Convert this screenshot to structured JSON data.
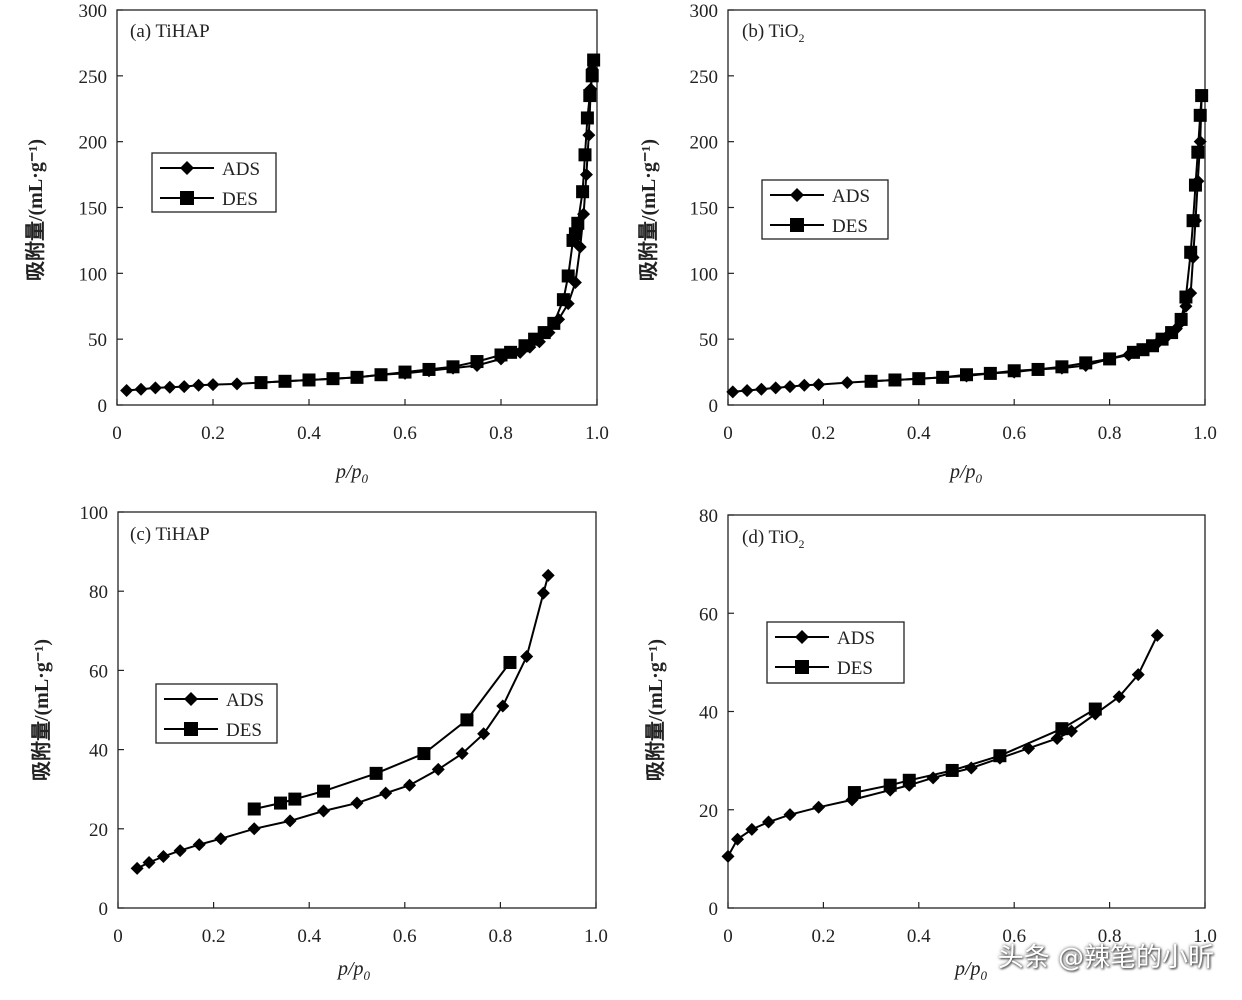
{
  "chart_data": [
    {
      "type": "line",
      "panel_label": "(a) TiHAP",
      "xlabel": "p/p0",
      "ylabel": "吸附量/(mL·g⁻¹)",
      "xlim": [
        0,
        1.0
      ],
      "ylim": [
        0,
        300
      ],
      "xticks": [
        "0",
        "0.2",
        "0.4",
        "0.6",
        "0.8",
        "1.0"
      ],
      "yticks": [
        "0",
        "50",
        "100",
        "150",
        "200",
        "250",
        "300"
      ],
      "legend": [
        "ADS",
        "DES"
      ],
      "series": [
        {
          "name": "ADS",
          "marker": "diamond",
          "x": [
            0.02,
            0.05,
            0.08,
            0.11,
            0.14,
            0.17,
            0.2,
            0.25,
            0.3,
            0.35,
            0.4,
            0.45,
            0.5,
            0.55,
            0.6,
            0.65,
            0.7,
            0.75,
            0.8,
            0.84,
            0.86,
            0.88,
            0.9,
            0.92,
            0.94,
            0.955,
            0.965,
            0.972,
            0.978,
            0.983,
            0.987,
            0.99,
            0.993
          ],
          "y": [
            11,
            12,
            13,
            13.5,
            14,
            15,
            15.5,
            16,
            17,
            18,
            19,
            20,
            21,
            23,
            24,
            26,
            28,
            30,
            35,
            40,
            44,
            48,
            55,
            65,
            77,
            93,
            120,
            145,
            175,
            205,
            240,
            255,
            262
          ]
        },
        {
          "name": "DES",
          "marker": "square",
          "x": [
            0.993,
            0.99,
            0.985,
            0.98,
            0.975,
            0.97,
            0.96,
            0.955,
            0.95,
            0.94,
            0.93,
            0.91,
            0.89,
            0.87,
            0.85,
            0.82,
            0.8,
            0.75,
            0.7,
            0.65,
            0.6,
            0.55,
            0.5,
            0.45,
            0.4,
            0.35,
            0.3
          ],
          "y": [
            262,
            250,
            235,
            218,
            190,
            162,
            138,
            130,
            125,
            98,
            80,
            62,
            55,
            50,
            45,
            40,
            38,
            33,
            29,
            27,
            25,
            23,
            21,
            20,
            19,
            18,
            17
          ]
        }
      ]
    },
    {
      "type": "line",
      "panel_label": "(b) TiO",
      "panel_label_sub": "2",
      "xlabel": "p/p0",
      "ylabel": "吸附量/(mL·g⁻¹)",
      "xlim": [
        0,
        1.0
      ],
      "ylim": [
        0,
        300
      ],
      "xticks": [
        "0",
        "0.2",
        "0.4",
        "0.6",
        "0.8",
        "1.0"
      ],
      "yticks": [
        "0",
        "50",
        "100",
        "150",
        "200",
        "250",
        "300"
      ],
      "legend": [
        "ADS",
        "DES"
      ],
      "series": [
        {
          "name": "ADS",
          "marker": "diamond",
          "x": [
            0.01,
            0.04,
            0.07,
            0.1,
            0.13,
            0.16,
            0.19,
            0.25,
            0.3,
            0.35,
            0.4,
            0.45,
            0.5,
            0.55,
            0.6,
            0.65,
            0.7,
            0.75,
            0.8,
            0.84,
            0.87,
            0.9,
            0.92,
            0.94,
            0.95,
            0.96,
            0.97,
            0.975,
            0.98,
            0.985,
            0.99,
            0.993
          ],
          "y": [
            10,
            11,
            12,
            13,
            14,
            15,
            15.5,
            17,
            18,
            19,
            20,
            21,
            22,
            24,
            25,
            27,
            28,
            30,
            35,
            38,
            42,
            47,
            52,
            58,
            63,
            75,
            85,
            112,
            140,
            170,
            200,
            235
          ]
        },
        {
          "name": "DES",
          "marker": "square",
          "x": [
            0.993,
            0.99,
            0.985,
            0.98,
            0.975,
            0.97,
            0.96,
            0.95,
            0.93,
            0.91,
            0.89,
            0.87,
            0.85,
            0.8,
            0.75,
            0.7,
            0.65,
            0.6,
            0.55,
            0.5,
            0.45,
            0.4,
            0.35,
            0.3
          ],
          "y": [
            235,
            220,
            192,
            167,
            140,
            116,
            82,
            65,
            55,
            50,
            45,
            42,
            40,
            35,
            32,
            29,
            27,
            26,
            24,
            23,
            21,
            20,
            19,
            18
          ]
        }
      ]
    },
    {
      "type": "line",
      "panel_label": "(c) TiHAP",
      "xlabel": "p/p0",
      "ylabel": "吸附量/(mL·g⁻¹)",
      "xlim": [
        0,
        1.0
      ],
      "ylim": [
        0,
        100
      ],
      "xticks": [
        "0",
        "0.2",
        "0.4",
        "0.6",
        "0.8",
        "1.0"
      ],
      "yticks": [
        "0",
        "20",
        "40",
        "60",
        "80",
        "100"
      ],
      "legend": [
        "ADS",
        "DES"
      ],
      "series": [
        {
          "name": "ADS",
          "marker": "diamond",
          "x": [
            0.04,
            0.065,
            0.095,
            0.13,
            0.17,
            0.215,
            0.285,
            0.36,
            0.43,
            0.5,
            0.56,
            0.61,
            0.67,
            0.72,
            0.765,
            0.805,
            0.855,
            0.89,
            0.9
          ],
          "y": [
            10,
            11.5,
            13,
            14.5,
            16,
            17.5,
            20,
            22,
            24.5,
            26.5,
            29,
            31,
            35,
            39,
            44,
            51,
            63.5,
            79.5,
            84
          ]
        },
        {
          "name": "DES",
          "marker": "square",
          "x": [
            0.82,
            0.73,
            0.64,
            0.54,
            0.43,
            0.37,
            0.34,
            0.285
          ],
          "y": [
            62,
            47.5,
            39,
            34,
            29.5,
            27.5,
            26.5,
            25
          ]
        }
      ]
    },
    {
      "type": "line",
      "panel_label": "(d) TiO",
      "panel_label_sub": "2",
      "xlabel": "p/p0",
      "ylabel": "吸附量/(mL·g⁻¹)",
      "xlim": [
        0,
        1.0
      ],
      "ylim": [
        0,
        80
      ],
      "xticks": [
        "0",
        "0.2",
        "0.4",
        "0.6",
        "0.8",
        "1.0"
      ],
      "yticks": [
        "0",
        "20",
        "40",
        "60",
        "80"
      ],
      "legend": [
        "ADS",
        "DES"
      ],
      "series": [
        {
          "name": "ADS",
          "marker": "diamond",
          "x": [
            0.0,
            0.02,
            0.05,
            0.085,
            0.13,
            0.19,
            0.26,
            0.34,
            0.38,
            0.43,
            0.51,
            0.57,
            0.63,
            0.69,
            0.72,
            0.77,
            0.82,
            0.86,
            0.9
          ],
          "y": [
            10.5,
            14,
            16,
            17.5,
            19,
            20.5,
            22,
            24,
            25,
            26.5,
            28.5,
            30.5,
            32.5,
            34.5,
            36,
            39.5,
            43,
            47.5,
            55.5
          ]
        },
        {
          "name": "DES",
          "marker": "square",
          "x": [
            0.77,
            0.7,
            0.57,
            0.47,
            0.38,
            0.34,
            0.265
          ],
          "y": [
            40.5,
            36.5,
            31,
            28,
            26,
            25,
            23.5
          ]
        }
      ]
    }
  ],
  "watermark": "头条 @辣笔的小昕"
}
